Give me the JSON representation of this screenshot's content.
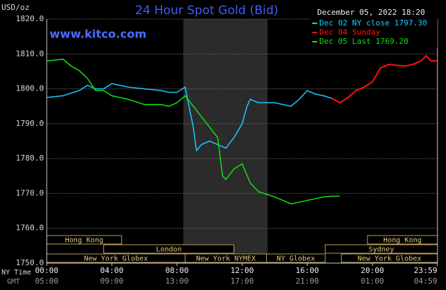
{
  "chart_data": {
    "type": "line",
    "title": "24 Hour Spot Gold (Bid)",
    "date": "December 05, 2022 18:20",
    "y_label": "USD/oz",
    "watermark": "www.kitco.com",
    "ylim": [
      1750,
      1820
    ],
    "yticks": [
      {
        "value": 1820,
        "label": "1820.0"
      },
      {
        "value": 1810,
        "label": "1810.0"
      },
      {
        "value": 1800,
        "label": "1800.0"
      },
      {
        "value": 1790,
        "label": "1790.0"
      },
      {
        "value": 1780,
        "label": "1780.0"
      },
      {
        "value": 1770,
        "label": "1770.0"
      },
      {
        "value": 1760,
        "label": "1760.0"
      },
      {
        "value": 1750,
        "label": "1750.0"
      }
    ],
    "xlim": [
      0,
      24
    ],
    "x_row_labels": [
      "NY Time",
      "GMT"
    ],
    "xticks": [
      {
        "value": 0,
        "label": "00:00"
      },
      {
        "value": 4,
        "label": "04:00"
      },
      {
        "value": 8,
        "label": "08:00"
      },
      {
        "value": 12,
        "label": "12:00"
      },
      {
        "value": 16,
        "label": "16:00"
      },
      {
        "value": 20,
        "label": "20:00"
      },
      {
        "value": 23.983,
        "label": "23:59"
      }
    ],
    "gmt_labels": [
      "05:00",
      "09:00",
      "13:00",
      "17:00",
      "21:00",
      "01:00",
      "04:59"
    ],
    "grid": true,
    "series": [
      {
        "name": "Dec 02 NY close 1797.30",
        "color": "#19c8ff",
        "x": [
          0,
          1,
          2,
          2.5,
          3,
          3.5,
          4,
          4.5,
          5,
          6,
          7,
          7.5,
          8,
          8.5,
          9,
          9.2,
          9.5,
          10,
          10.5,
          11,
          11.5,
          12,
          12.3,
          12.5,
          13,
          14,
          15,
          15.5,
          16,
          16.5,
          17,
          17.5
        ],
        "values": [
          1797.5,
          1798,
          1799.5,
          1801,
          1800,
          1800,
          1801.5,
          1801,
          1800.5,
          1800,
          1799.5,
          1799,
          1799,
          1800.5,
          1789,
          1782.3,
          1784,
          1785,
          1784,
          1783,
          1786,
          1790,
          1795,
          1797,
          1796,
          1796,
          1795,
          1797,
          1799.5,
          1798.5,
          1798,
          1797.3
        ]
      },
      {
        "name": "Dec 04 Sunday",
        "color": "#ff1010",
        "x": [
          17.5,
          18,
          18.5,
          19,
          19.5,
          20,
          20.5,
          21,
          22,
          22.5,
          23,
          23.3,
          23.6,
          24
        ],
        "values": [
          1797.3,
          1796,
          1797.5,
          1799.5,
          1800.5,
          1802,
          1806,
          1807,
          1806.5,
          1807,
          1808,
          1809.5,
          1808,
          1808
        ]
      },
      {
        "name": "Dec 05 Last 1769.20",
        "color": "#10e010",
        "x": [
          0,
          1,
          1.5,
          2,
          2.5,
          3,
          3.5,
          4,
          5,
          6,
          7,
          7.5,
          8,
          8.5,
          9,
          10,
          10.5,
          10.8,
          11,
          11.5,
          12,
          12.5,
          13,
          14,
          14.5,
          15,
          15.5,
          16,
          17,
          17.5,
          18
        ],
        "values": [
          1808,
          1808.5,
          1806.5,
          1805.2,
          1803,
          1799.5,
          1799.5,
          1798,
          1797,
          1795.5,
          1795.5,
          1795,
          1796,
          1798,
          1795,
          1789,
          1786,
          1775,
          1774,
          1777,
          1778.5,
          1773,
          1770.5,
          1769,
          1768,
          1767,
          1767.5,
          1768,
          1769,
          1769.2,
          1769.2
        ]
      }
    ],
    "sessions": [
      {
        "label": "Hong Kong",
        "start": 0,
        "end": 4.6,
        "row": 0
      },
      {
        "label": "London",
        "start": 3.5,
        "end": 11.5,
        "row": 1
      },
      {
        "label": "New York Globex",
        "start": 0,
        "end": 8.5,
        "row": 2
      },
      {
        "label": "New York NYMEX",
        "start": 8.5,
        "end": 13.5,
        "row": 2
      },
      {
        "label": "NY Globex",
        "start": 13.5,
        "end": 17.1,
        "row": 2
      },
      {
        "label": "Hong Kong",
        "start": 19.7,
        "end": 24,
        "row": 0
      },
      {
        "label": "Sydney",
        "start": 17.1,
        "end": 24,
        "row": 1
      },
      {
        "label": "New York Globex",
        "start": 18.1,
        "end": 24,
        "row": 2
      }
    ]
  }
}
